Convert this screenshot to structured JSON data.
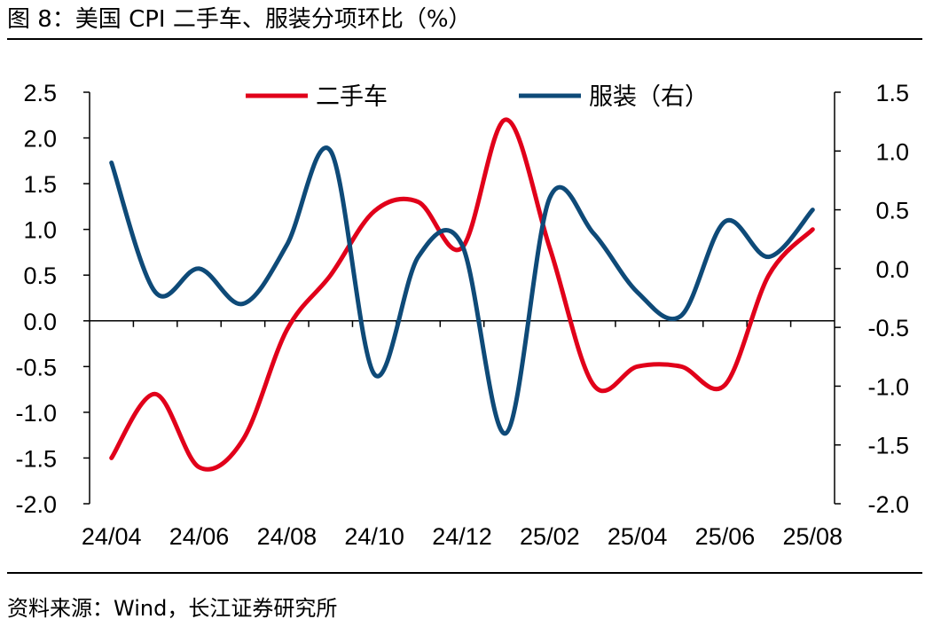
{
  "figure": {
    "title": "图 8：美国 CPI 二手车、服装分项环比（%）",
    "source": "资料来源：Wind，长江证券研究所"
  },
  "chart_data": {
    "type": "line",
    "x": [
      "24/04",
      "24/05",
      "24/06",
      "24/07",
      "24/08",
      "24/09",
      "24/10",
      "24/11",
      "24/12",
      "25/01",
      "25/02",
      "25/03",
      "25/04",
      "25/05",
      "25/06",
      "25/07",
      "25/08"
    ],
    "x_tick_labels": [
      "24/04",
      "24/06",
      "24/08",
      "24/10",
      "24/12",
      "25/02",
      "25/04",
      "25/06",
      "25/08"
    ],
    "series": [
      {
        "name": "二手车",
        "axis": "left",
        "color": "#e1001a",
        "values": [
          -1.5,
          -0.8,
          -1.6,
          -1.3,
          -0.1,
          0.5,
          1.2,
          1.3,
          0.8,
          2.2,
          0.8,
          -0.7,
          -0.5,
          -0.5,
          -0.7,
          0.5,
          1.0
        ]
      },
      {
        "name": "服装（右）",
        "axis": "right",
        "color": "#0e4a78",
        "values": [
          0.9,
          -0.2,
          0.0,
          -0.3,
          0.2,
          1.0,
          -0.9,
          0.1,
          0.2,
          -1.4,
          0.6,
          0.3,
          -0.2,
          -0.4,
          0.4,
          0.1,
          0.5
        ]
      }
    ],
    "y_left": {
      "range": [
        -2.0,
        2.5
      ],
      "ticks": [
        "2.5",
        "2.0",
        "1.5",
        "1.0",
        "0.5",
        "0.0",
        "-0.5",
        "-1.0",
        "-1.5",
        "-2.0"
      ]
    },
    "y_right": {
      "range": [
        -2.0,
        1.5
      ],
      "ticks": [
        "1.5",
        "1.0",
        "0.5",
        "0.0",
        "-0.5",
        "-1.0",
        "-1.5",
        "-2.0"
      ]
    },
    "legend_position": "top",
    "grid": false
  }
}
